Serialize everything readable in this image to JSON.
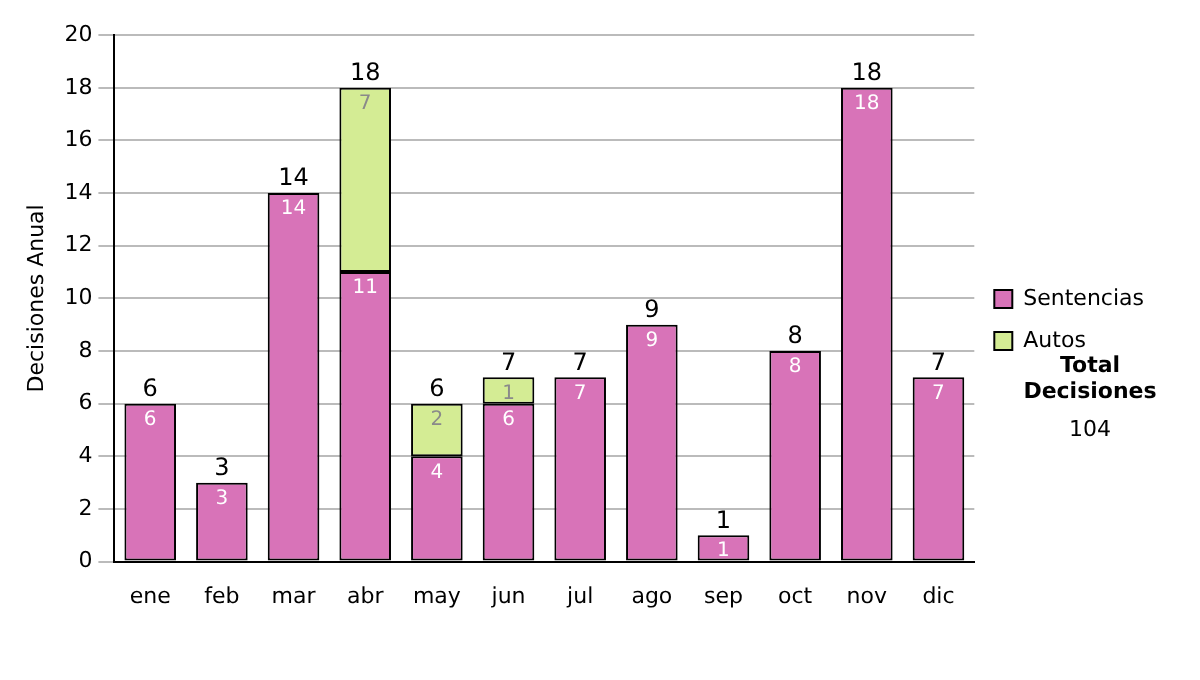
{
  "chart_data": {
    "type": "bar",
    "ylabel": "Decisiones Anual",
    "categories": [
      "ene",
      "feb",
      "mar",
      "abr",
      "may",
      "jun",
      "jul",
      "ago",
      "sep",
      "oct",
      "nov",
      "dic"
    ],
    "series": [
      {
        "name": "Sentencias",
        "color": "#d873b8",
        "values": [
          6,
          3,
          14,
          11,
          4,
          6,
          7,
          9,
          1,
          8,
          18,
          7
        ]
      },
      {
        "name": "Autos",
        "color": "#d4ec94",
        "values": [
          null,
          null,
          null,
          7,
          2,
          1,
          null,
          null,
          null,
          null,
          null,
          null
        ]
      }
    ],
    "stacked": true,
    "data_labels": true,
    "totals": [
      "6",
      "3",
      "14",
      "18",
      "6",
      "7",
      "7",
      "9",
      "1",
      "8",
      "18",
      "7"
    ],
    "ylim": [
      0,
      20
    ],
    "yticks": [
      0,
      2,
      4,
      6,
      8,
      10,
      12,
      14,
      16,
      18,
      20
    ],
    "grid": "y",
    "legend": "right",
    "annotations": [
      "Total Decisiones",
      "104"
    ]
  }
}
